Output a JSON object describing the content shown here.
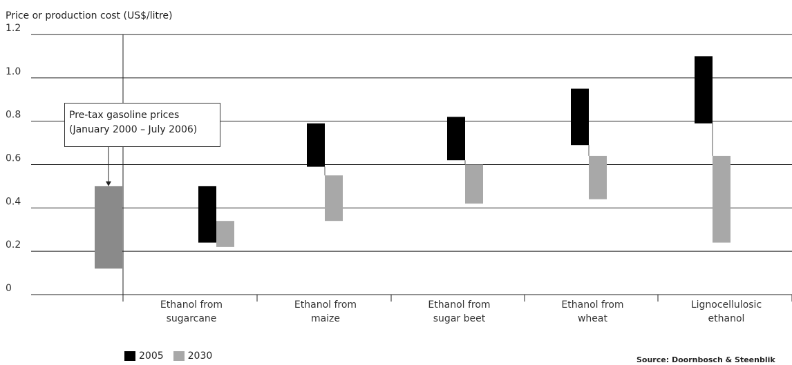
{
  "chart_data": {
    "type": "range-bar",
    "ylabel": "Price or production cost (US$/litre)",
    "ylim": [
      0,
      1.2
    ],
    "yticks": [
      "0",
      "0.2",
      "0.4",
      "0.6",
      "0.8",
      "1.0",
      "1.2"
    ],
    "categories": [
      [
        "Ethanol from",
        "sugarcane"
      ],
      [
        "Ethanol from",
        "maize"
      ],
      [
        "Ethanol from",
        "sugar beet"
      ],
      [
        "Ethanol from",
        "wheat"
      ],
      [
        "Lignocellulosic",
        "ethanol"
      ]
    ],
    "reference": {
      "label_lines": [
        "Pre-tax gasoline prices",
        "(January 2000 – July 2006)"
      ],
      "low": 0.12,
      "high": 0.5,
      "color": "#8a8a8a"
    },
    "series": [
      {
        "name": "2005",
        "color": "#000000",
        "ranges": [
          [
            0.24,
            0.5
          ],
          [
            0.59,
            0.79
          ],
          [
            0.62,
            0.82
          ],
          [
            0.69,
            0.95
          ],
          [
            0.79,
            1.1
          ]
        ]
      },
      {
        "name": "2030",
        "color": "#a8a8a8",
        "ranges": [
          [
            0.22,
            0.34
          ],
          [
            0.34,
            0.55
          ],
          [
            0.42,
            0.6
          ],
          [
            0.44,
            0.64
          ],
          [
            0.24,
            0.64
          ]
        ]
      }
    ],
    "grid": true,
    "legend_position": "bottom-left"
  },
  "source": "Source: Doornbosch & Steenblik"
}
